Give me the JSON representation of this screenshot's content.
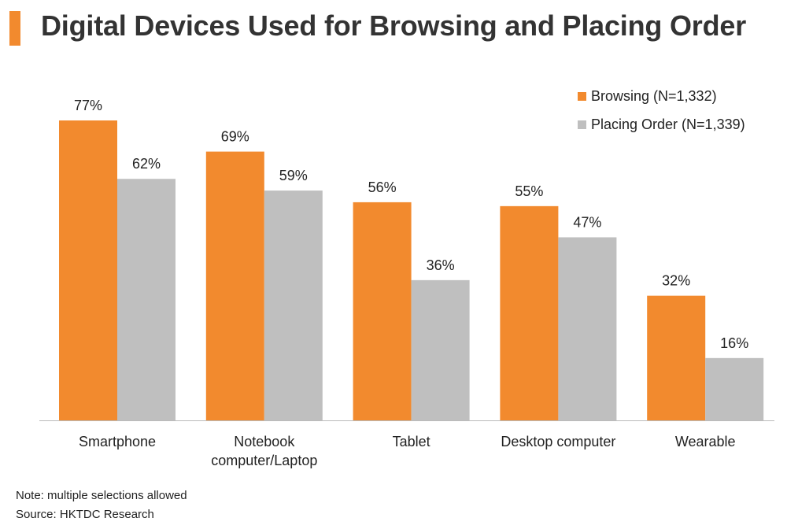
{
  "title": "Digital Devices Used for Browsing and Placing Order",
  "colors": {
    "accent": "#f28a2e",
    "series1": "#f28a2e",
    "series2": "#bfbfbf",
    "axis": "#bbbbbb"
  },
  "legend": {
    "items": [
      {
        "label": "Browsing (N=1,332)"
      },
      {
        "label": "Placing Order (N=1,339)"
      }
    ]
  },
  "notes": {
    "note": "Note: multiple selections allowed",
    "source": "Source: HKTDC Research"
  },
  "chart_data": {
    "type": "bar",
    "title": "Digital Devices Used for Browsing and Placing Order",
    "categories": [
      [
        "Smartphone"
      ],
      [
        "Notebook",
        "computer/Laptop"
      ],
      [
        "Tablet"
      ],
      [
        "Desktop computer"
      ],
      [
        "Wearable"
      ]
    ],
    "series": [
      {
        "name": "Browsing (N=1,332)",
        "values": [
          77,
          69,
          56,
          55,
          32
        ]
      },
      {
        "name": "Placing Order (N=1,339)",
        "values": [
          62,
          59,
          36,
          47,
          16
        ]
      }
    ],
    "value_suffix": "%",
    "ylim": [
      0,
      77
    ],
    "xlabel": "",
    "ylabel": "",
    "grid": false,
    "legend_position": "top-right"
  }
}
